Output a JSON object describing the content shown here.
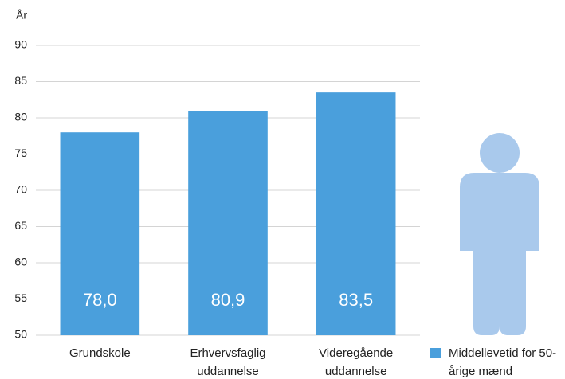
{
  "chart_data": {
    "type": "bar",
    "y_label": "År",
    "categories": [
      "Grundskole",
      "Erhvervsfaglig uddannelse",
      "Videregående uddannelse"
    ],
    "series": [
      {
        "name": "Middellevetid for 50-årige mænd",
        "color": "#4a9fdc",
        "values": [
          78.0,
          80.9,
          83.5
        ],
        "value_labels": [
          "78,0",
          "80,9",
          "83,5"
        ]
      }
    ],
    "ylim": [
      50,
      90
    ],
    "yticks": [
      50,
      55,
      60,
      65,
      70,
      75,
      80,
      85,
      90
    ],
    "grid": true
  }
}
